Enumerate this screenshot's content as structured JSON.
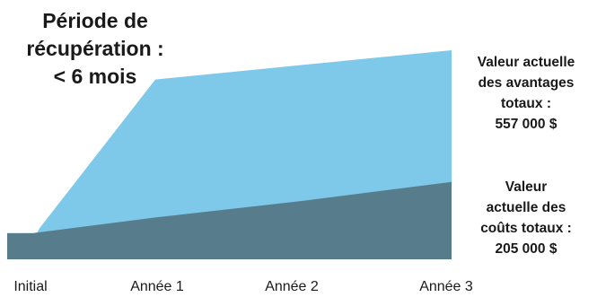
{
  "callouts": {
    "payback": [
      "Période de",
      "récupération :",
      "< 6 mois"
    ],
    "benefits": [
      "Valeur actuelle",
      "des avantages",
      "totaux :",
      "557 000 $"
    ],
    "costs": [
      "Valeur",
      "actuelle des",
      "coûts totaux :",
      "205 000 $"
    ]
  },
  "colors": {
    "benefits": "#7ec8ea",
    "costs": "#577d8d",
    "initial_cost": "#a6a6a6"
  },
  "chart_data": {
    "type": "area",
    "categories": [
      "Initial",
      "Année 1",
      "Année 2",
      "Année 3"
    ],
    "x": [
      0,
      1,
      2,
      3
    ],
    "series": [
      {
        "values": [
          0,
          0.86,
          0.93,
          1.0
        ]
      },
      {
        "values": [
          0.125,
          0.2,
          0.28,
          0.37
        ]
      }
    ],
    "ylim": [
      0,
      1
    ],
    "grid": false,
    "legend": "none"
  }
}
